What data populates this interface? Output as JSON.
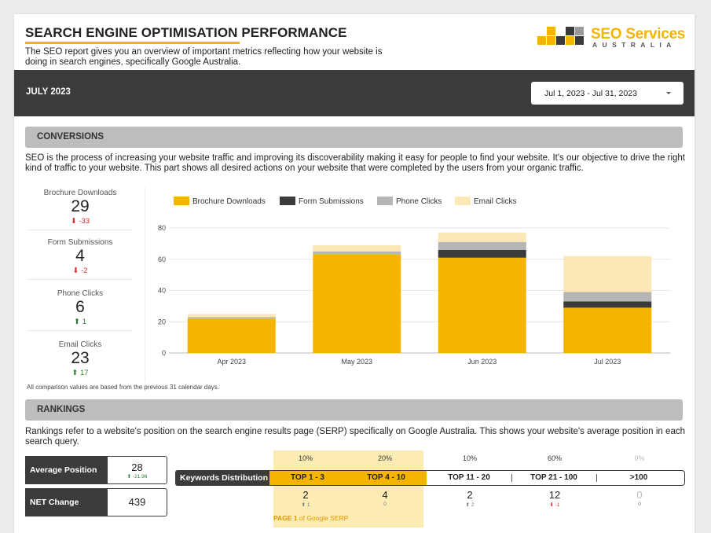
{
  "header": {
    "title": "SEARCH ENGINE OPTIMISATION PERFORMANCE",
    "intro": "The SEO report gives you an overview of important metrics reflecting how your website is doing in search engines, specifically Google Australia.",
    "logo_main_a": "SEO",
    "logo_main_b": "Services",
    "logo_sub": "AUSTRALIA"
  },
  "period_bar": {
    "month": "JULY 2023",
    "date_range": "Jul 1, 2023 - Jul 31, 2023"
  },
  "conversions": {
    "heading": "CONVERSIONS",
    "text": "SEO is the process of increasing your website traffic and improving its discoverability making it easy for people to find your website. It's our objective to drive the right kind of traffic to your website. This part shows all desired actions on your website that were completed by the users from your organic traffic.",
    "kpis": [
      {
        "label": "Brochure Downloads",
        "value": "29",
        "delta": "-33",
        "dir": "down"
      },
      {
        "label": "Form Submissions",
        "value": "4",
        "delta": "-2",
        "dir": "down"
      },
      {
        "label": "Phone Clicks",
        "value": "6",
        "delta": "1",
        "dir": "up"
      },
      {
        "label": "Email Clicks",
        "value": "23",
        "delta": "17",
        "dir": "up"
      }
    ],
    "footnote": "All comparison values are based from the previous 31 calendar days."
  },
  "chart_data": {
    "type": "bar",
    "stacked": true,
    "categories": [
      "Apr 2023",
      "May 2023",
      "Jun 2023",
      "Jul 2023"
    ],
    "series": [
      {
        "name": "Brochure Downloads",
        "color": "#f5b400",
        "values": [
          22,
          63,
          61,
          29
        ]
      },
      {
        "name": "Form Submissions",
        "color": "#3b3b3b",
        "values": [
          0,
          0,
          5,
          4
        ]
      },
      {
        "name": "Phone Clicks",
        "color": "#b5b5b5",
        "values": [
          1,
          2,
          5,
          6
        ]
      },
      {
        "name": "Email Clicks",
        "color": "#fbe8b4",
        "values": [
          2,
          4,
          6,
          23
        ]
      }
    ],
    "ylim": [
      0,
      80
    ],
    "yticks": [
      0,
      20,
      40,
      60,
      80
    ],
    "legend": "top-left",
    "grid": true
  },
  "rankings": {
    "heading": "RANKINGS",
    "text": "Rankings refer to a website's position on the search engine results page (SERP) specifically on Google Australia. This shows your website's average position in each search query.",
    "avg_label": "Average Position",
    "avg_value": "28",
    "avg_delta": "-21.96",
    "net_label": "NET Change",
    "net_value": "439",
    "kd_label": "Keywords Distribution",
    "buckets": [
      {
        "label": "TOP 1 - 3",
        "pct": "10%",
        "count": "2",
        "delta": "1",
        "dir": "up"
      },
      {
        "label": "TOP 4 - 10",
        "pct": "20%",
        "count": "4",
        "delta": "0",
        "dir": "none"
      },
      {
        "label": "TOP 11 - 20",
        "pct": "10%",
        "count": "2",
        "delta": "2",
        "dir": "up"
      },
      {
        "label": "TOP 21 - 100",
        "pct": "60%",
        "count": "12",
        "delta": "-1",
        "dir": "down"
      },
      {
        "label": ">100",
        "pct": "0%",
        "count": "0",
        "delta": "0",
        "dir": "none"
      }
    ],
    "serp_page": "PAGE 1",
    "serp_rest": "of Google SERP"
  }
}
